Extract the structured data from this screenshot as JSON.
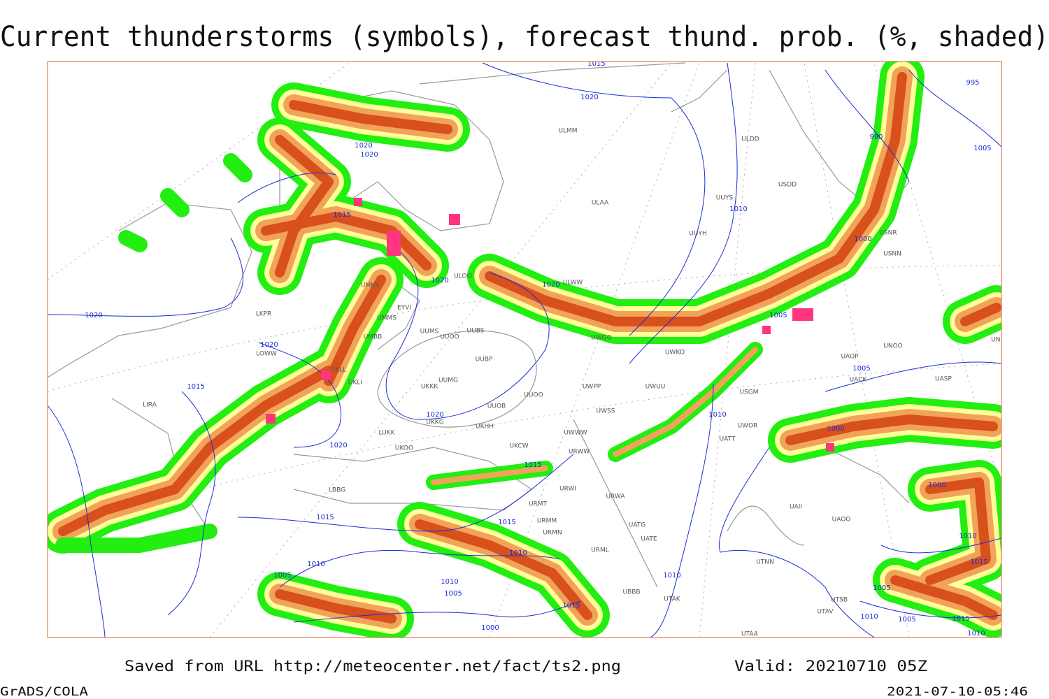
{
  "title": "Current thunderstorms (symbols), forecast thund. prob. (%, shaded)",
  "footer": {
    "source": "Saved from URL http://meteocenter.net/fact/ts2.png",
    "valid": "Valid: 20210710 05Z",
    "software": "GrADS/COLA",
    "timestamp": "2021-07-10-05:46"
  },
  "map": {
    "isobar_labels": [
      "1015",
      "1020",
      "995",
      "990",
      "1005",
      "1020",
      "1020",
      "1015",
      "1010",
      "1000",
      "1020",
      "1020",
      "1020",
      "1005",
      "1020",
      "1005",
      "1015",
      "1010",
      "1020",
      "1020",
      "1000",
      "1015",
      "1000",
      "1015",
      "1015",
      "1010",
      "1010",
      "1010",
      "1015",
      "1005",
      "1010",
      "1005",
      "1010",
      "1005",
      "1015",
      "1010",
      "1005",
      "1015",
      "1000",
      "1010"
    ],
    "station_labels": [
      "ULMM",
      "ULDD",
      "USDD",
      "ULAA",
      "UUYS",
      "UUYH",
      "USNR",
      "USNN",
      "ULOO",
      "ULWW",
      "UMKK",
      "EYVI",
      "UMMS",
      "UMBB",
      "UUMS",
      "UUOO",
      "UUBS",
      "UUBP",
      "UUMG",
      "UKKK",
      "UUOO",
      "UUOB",
      "UKKG",
      "UKHH",
      "LUKK",
      "UKOO",
      "UKCW",
      "URWW",
      "URWI",
      "URMT",
      "URMM",
      "URMN",
      "URML",
      "UBBB",
      "UTAK",
      "UTAA",
      "UWWW",
      "UWSS",
      "UWKD",
      "UWGG",
      "UWPP",
      "UWUU",
      "USGM",
      "UWOR",
      "UATT",
      "UACK",
      "UAOP",
      "UNOO",
      "UASP",
      "UNBB",
      "UAII",
      "UAOO",
      "UTNN",
      "UTSB",
      "UTAV",
      "UATG",
      "UATE",
      "URWA",
      "LBBG",
      "LOWW",
      "LKPR",
      "LIRA",
      "UKLL",
      "UKLI"
    ]
  }
}
